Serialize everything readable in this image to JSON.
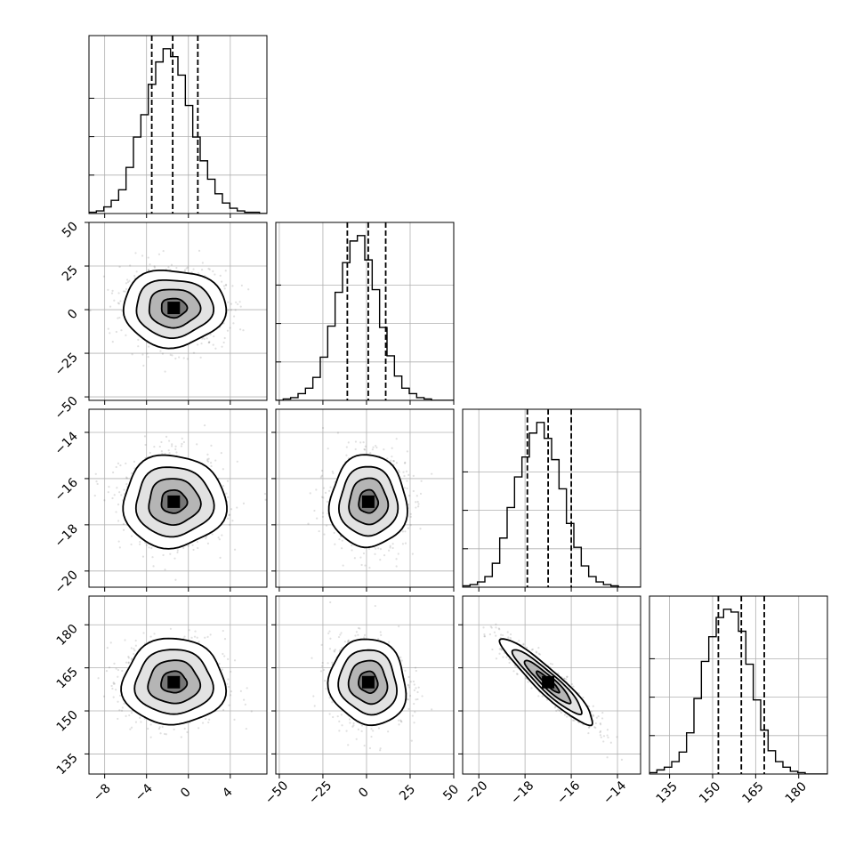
{
  "chart_data": {
    "type": "corner",
    "parameters": [
      {
        "range": [
          -9.5,
          7.5
        ],
        "ticks": [
          -8,
          -4,
          0,
          4
        ],
        "tick_labels": [
          "−8",
          "−4",
          "0",
          "4"
        ],
        "mean": -1.4,
        "sd": 2.45,
        "quantiles": [
          -3.5,
          -1.5,
          0.9
        ],
        "hist_counts": [
          1,
          2,
          5,
          10,
          18,
          35,
          58,
          75,
          98,
          115,
          125,
          119,
          105,
          82,
          58,
          40,
          26,
          15,
          8,
          4,
          2,
          1,
          1,
          0
        ]
      },
      {
        "range": [
          -52,
          50
        ],
        "ticks": [
          -50,
          -25,
          0,
          25,
          50
        ],
        "tick_labels": [
          "−50",
          "−25",
          "0",
          "25",
          "50"
        ],
        "mean": 1.0,
        "sd": 11.0,
        "quantiles": [
          -11,
          1,
          11
        ],
        "hist_counts": [
          0,
          1,
          2,
          5,
          9,
          17,
          32,
          55,
          80,
          102,
          118,
          122,
          104,
          82,
          54,
          33,
          18,
          9,
          5,
          2,
          1,
          0,
          0,
          0
        ]
      },
      {
        "range": [
          -20.7,
          -13.0
        ],
        "ticks": [
          -20,
          -18,
          -16,
          -14
        ],
        "tick_labels": [
          "−20",
          "−18",
          "−16",
          "−14"
        ],
        "mean": -17.0,
        "sd": 1.0,
        "quantiles": [
          -17.9,
          -17.0,
          -16.0
        ],
        "hist_counts": [
          1,
          2,
          4,
          8,
          18,
          37,
          60,
          83,
          98,
          116,
          124,
          112,
          96,
          74,
          48,
          30,
          16,
          8,
          4,
          2,
          1,
          0,
          0,
          0
        ]
      },
      {
        "range": [
          128,
          190
        ],
        "ticks": [
          135,
          150,
          165,
          180
        ],
        "tick_labels": [
          "135",
          "150",
          "165",
          "180"
        ],
        "mean": 160.0,
        "sd": 7.5,
        "quantiles": [
          152,
          160,
          168
        ],
        "hist_counts": [
          1,
          3,
          5,
          9,
          16,
          30,
          55,
          82,
          100,
          114,
          120,
          118,
          104,
          80,
          54,
          32,
          17,
          9,
          5,
          2,
          1,
          0,
          0,
          0
        ]
      }
    ],
    "correlations": [
      [
        1,
        0,
        0,
        0
      ],
      [
        0,
        1,
        0,
        -0.08
      ],
      [
        0,
        0,
        1,
        -0.93
      ],
      [
        0,
        -0.08,
        -0.93,
        1
      ]
    ],
    "quantile_levels": [
      0.16,
      0.5,
      0.84
    ],
    "contour_levels_sigma": [
      0.5,
      1.0,
      1.5,
      2.0
    ],
    "y_hist_ticks": [
      25,
      50,
      75
    ],
    "grid": true,
    "title": "",
    "xlabel": "",
    "ylabel": ""
  }
}
